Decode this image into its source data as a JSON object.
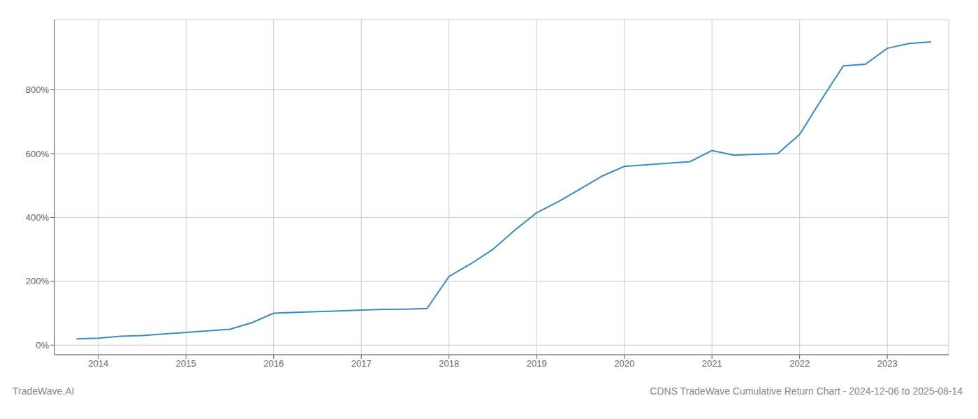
{
  "chart_data": {
    "type": "line",
    "title": "CDNS TradeWave Cumulative Return Chart - 2024-12-06 to 2025-08-14",
    "annotations": [
      "TradeWave.AI"
    ],
    "x": [
      2013.75,
      2014.0,
      2014.25,
      2014.5,
      2014.75,
      2015.0,
      2015.25,
      2015.5,
      2015.75,
      2016.0,
      2016.25,
      2016.5,
      2016.75,
      2017.0,
      2017.25,
      2017.5,
      2017.75,
      2018.0,
      2018.25,
      2018.5,
      2018.75,
      2019.0,
      2019.25,
      2019.5,
      2019.75,
      2020.0,
      2020.25,
      2020.5,
      2020.75,
      2021.0,
      2021.25,
      2021.5,
      2021.75,
      2022.0,
      2022.25,
      2022.5,
      2022.75,
      2023.0,
      2023.25,
      2023.5
    ],
    "values": [
      20,
      22,
      28,
      30,
      35,
      40,
      45,
      50,
      70,
      100,
      103,
      105,
      107,
      110,
      112,
      113,
      115,
      215,
      255,
      300,
      360,
      415,
      450,
      490,
      530,
      560,
      565,
      570,
      575,
      610,
      595,
      598,
      600,
      660,
      770,
      875,
      880,
      930,
      945,
      950
    ],
    "color": "#3a8bbf",
    "xlim": [
      2013.5,
      2023.7
    ],
    "xticks": [
      2014,
      2015,
      2016,
      2017,
      2018,
      2019,
      2020,
      2021,
      2022,
      2023
    ],
    "ylim": [
      -30,
      1020
    ],
    "yticks": [
      {
        "value": 0,
        "label": "0%"
      },
      {
        "value": 200,
        "label": "200%"
      },
      {
        "value": 400,
        "label": "400%"
      },
      {
        "value": 600,
        "label": "600%"
      },
      {
        "value": 800,
        "label": "800%"
      }
    ],
    "grid": true
  }
}
